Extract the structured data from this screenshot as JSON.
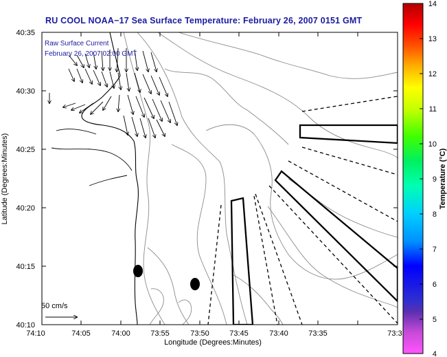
{
  "title": "RU COOL  NOAA−17  Sea Surface Temperature:  February 26, 2007 0151 GMT",
  "legend": {
    "line1": "Raw Surface Current",
    "line2": "February 26, 2007 02:00 GMT",
    "scale_label": "50 cm/s"
  },
  "axes": {
    "xlabel": "Longitude (Degrees:Minutes)",
    "ylabel": "Latitude (Degrees:Minutes)",
    "xticks": [
      "74:10",
      "74:05",
      "74:00",
      "73:55",
      "73:50",
      "73:45",
      "73:40",
      "73:35",
      "73:3"
    ],
    "yticks": [
      "40:35",
      "40:30",
      "40:25",
      "40:20",
      "40:15",
      "40:10"
    ]
  },
  "colorbar": {
    "label": "Temperature (°C)",
    "ticks": [
      "14",
      "13",
      "12",
      "11",
      "10",
      "9",
      "8",
      "7",
      "6",
      "5",
      "4"
    ],
    "min": 4,
    "max": 14
  }
}
